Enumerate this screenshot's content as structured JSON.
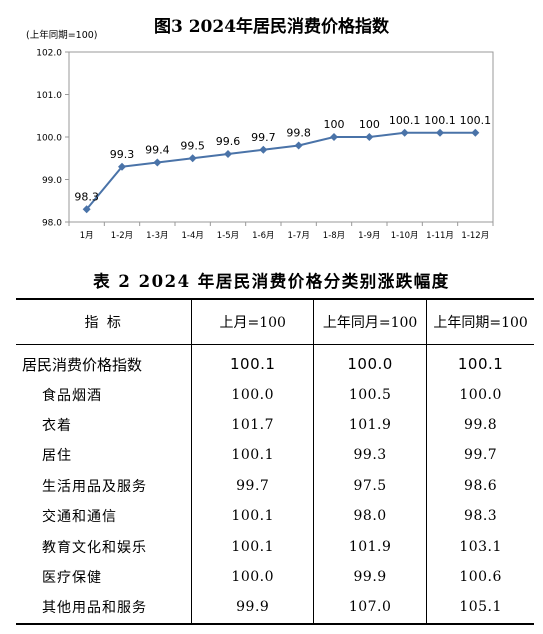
{
  "chart_data": {
    "type": "line",
    "title": "图3   2024年居民消费价格指数",
    "unit_label": "(上年同期=100)",
    "categories": [
      "1月",
      "1-2月",
      "1-3月",
      "1-4月",
      "1-5月",
      "1-6月",
      "1-7月",
      "1-8月",
      "1-9月",
      "1-10月",
      "1-11月",
      "1-12月"
    ],
    "values": [
      98.3,
      99.3,
      99.4,
      99.5,
      99.6,
      99.7,
      99.8,
      100,
      100,
      100.1,
      100.1,
      100.1
    ],
    "data_labels": [
      "98.3",
      "99.3",
      "99.4",
      "99.5",
      "99.6",
      "99.7",
      "99.8",
      "100",
      "100",
      "100.1",
      "100.1",
      "100.1"
    ],
    "ylim": [
      98.0,
      102.0
    ],
    "yticks": [
      "98.0",
      "99.0",
      "100.0",
      "101.0",
      "102.0"
    ],
    "grid": false,
    "line_color": "#4a73a8",
    "marker": "diamond"
  },
  "table": {
    "title": "表 2    2024 年居民消费价格分类别涨跌幅度",
    "headers": [
      "指    标",
      "上月=100",
      "上年同月=100",
      "上年同期=100"
    ],
    "rows": [
      {
        "name": "居民消费价格指数",
        "v1": "100.1",
        "v2": "100.0",
        "v3": "100.1"
      },
      {
        "name": "食品烟酒",
        "v1": "100.0",
        "v2": "100.5",
        "v3": "100.0"
      },
      {
        "name": "衣着",
        "v1": "101.7",
        "v2": "101.9",
        "v3": "99.8"
      },
      {
        "name": "居住",
        "v1": "100.1",
        "v2": "99.3",
        "v3": "99.7"
      },
      {
        "name": "生活用品及服务",
        "v1": "99.7",
        "v2": "97.5",
        "v3": "98.6"
      },
      {
        "name": "交通和通信",
        "v1": "100.1",
        "v2": "98.0",
        "v3": "98.3"
      },
      {
        "name": "教育文化和娱乐",
        "v1": "100.1",
        "v2": "101.9",
        "v3": "103.1"
      },
      {
        "name": "医疗保健",
        "v1": "100.0",
        "v2": "99.9",
        "v3": "100.6"
      },
      {
        "name": "其他用品和服务",
        "v1": "99.9",
        "v2": "107.0",
        "v3": "105.1"
      }
    ]
  }
}
